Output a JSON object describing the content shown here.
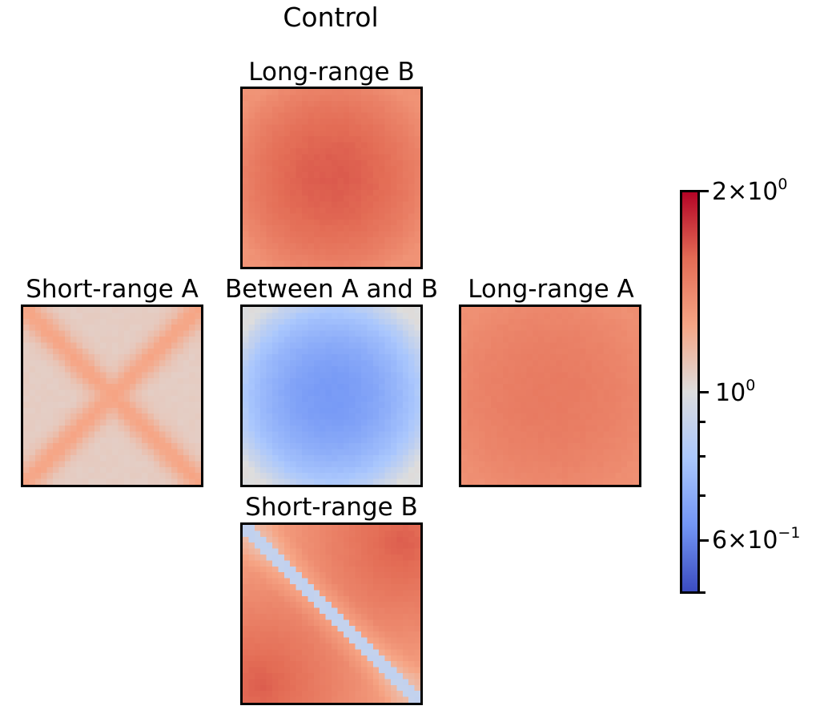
{
  "chart_data": {
    "type": "heatmap",
    "title": "Control",
    "colormap": "coolwarm",
    "colorbar": {
      "scale": "log",
      "range": [
        0.5,
        2.0
      ],
      "major_ticks": [
        {
          "value": 2.0,
          "mantissa": "2",
          "exponent": "0"
        },
        {
          "value": 1.0,
          "mantissa": "",
          "exponent": "0"
        },
        {
          "value": 0.6,
          "mantissa": "6",
          "exponent": "−1"
        }
      ],
      "minor_ticks": [
        0.9,
        0.8,
        0.7,
        0.5
      ]
    },
    "panels": [
      {
        "id": "long-range-b",
        "title": "Long-range B",
        "position": "top",
        "pattern": "center",
        "edge": 1.28,
        "peak": 1.58
      },
      {
        "id": "short-range-a",
        "title": "Short-range A",
        "position": "left",
        "pattern": "x-cross",
        "edge": 1.05,
        "peak": 1.18
      },
      {
        "id": "between-a-b",
        "title": "Between A and B",
        "position": "center",
        "pattern": "center",
        "edge": 1.0,
        "peak": 0.72
      },
      {
        "id": "long-range-a",
        "title": "Long-range A",
        "position": "right",
        "pattern": "center",
        "edge": 1.3,
        "peak": 1.42
      },
      {
        "id": "short-range-b",
        "title": "Short-range B",
        "position": "bottom",
        "pattern": "diagonal",
        "edge": 1.2,
        "peak": 1.58,
        "diag": 0.93
      }
    ]
  }
}
